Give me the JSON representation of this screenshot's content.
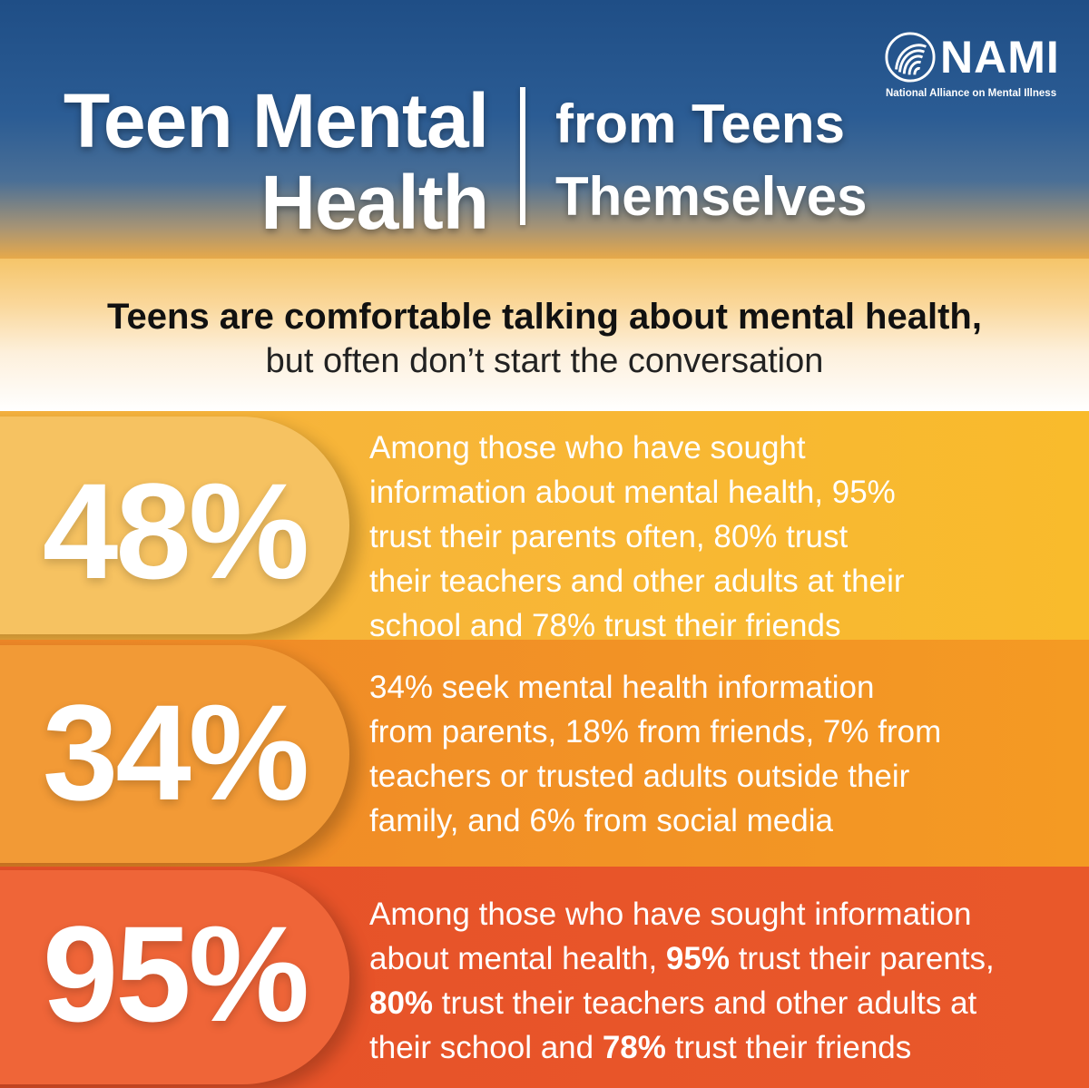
{
  "header": {
    "title_line1": "Teen Mental",
    "title_line2": "Health",
    "subtitle_line1": "from Teens",
    "subtitle_line2": "Themselves",
    "colors": {
      "top": "#1f4e86",
      "bottom": "#e7a94a"
    }
  },
  "logo": {
    "name": "NAMI",
    "tagline": "National Alliance on Mental Illness",
    "icon": "nami-swirl-logo-icon"
  },
  "subhead": {
    "bold": "Teens are comfortable talking about mental health,",
    "regular": "but often don’t start the conversation"
  },
  "stats": [
    {
      "value": "48%",
      "lines": [
        "Among those who have sought",
        "information about mental health, 95%",
        "trust their parents often, 80% trust",
        "their teachers and other adults at their",
        "school and 78% trust their friends"
      ],
      "color": "#f9bb2c"
    },
    {
      "value": "34%",
      "lines": [
        "34% seek mental health information",
        "from parents, 18% from friends, 7% from",
        "teachers or trusted adults outside their",
        "family, and 6% from social media"
      ],
      "color": "#f49a23"
    },
    {
      "value": "95%",
      "line1": "Among those who have sought information",
      "line2_pre": "about mental health, ",
      "line2_num": "95%",
      "line2_post": " trust their parents,",
      "line3_num": "80%",
      "line3_post": " trust their teachers and other adults at",
      "line4_pre": "their school and ",
      "line4_num": "78%",
      "line4_post": " trust their friends",
      "color": "#e9582a"
    }
  ]
}
